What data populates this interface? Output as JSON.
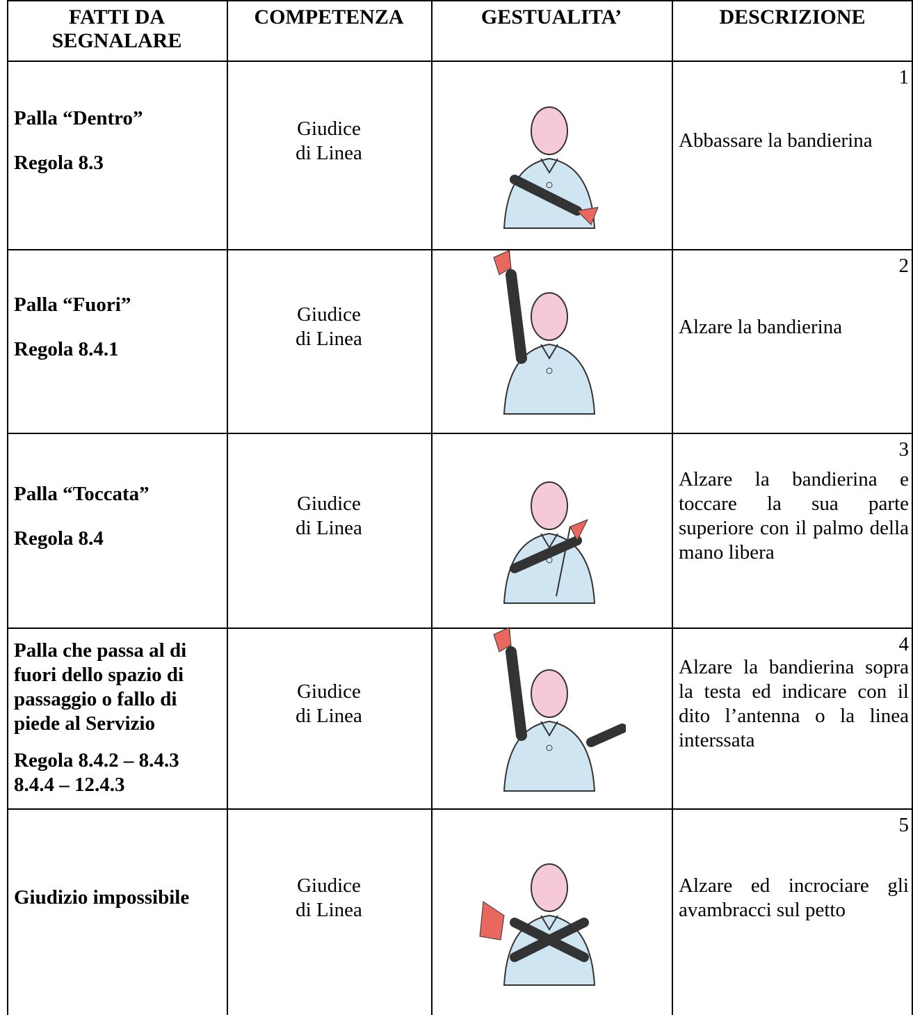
{
  "table": {
    "headers": [
      "FATTI DA\nSEGNALARE",
      "COMPETENZA",
      "GESTUALITA’",
      "DESCRIZIONE"
    ],
    "rows": [
      {
        "number": "1",
        "fact": "Palla “Dentro”",
        "rule": "Regola 8.3",
        "competence": "Giudice\ndi Linea",
        "description": "Abbassare la bandierina"
      },
      {
        "number": "2",
        "fact": "Palla “Fuori”",
        "rule": "Regola 8.4.1",
        "competence": "Giudice\ndi Linea",
        "description": "Alzare la bandierina"
      },
      {
        "number": "3",
        "fact": "Palla “Toccata”",
        "rule": "Regola 8.4",
        "competence": "Giudice\ndi Linea",
        "description": "Alzare la bandierina e toccare la sua parte superiore con il palmo della mano libera"
      },
      {
        "number": "4",
        "fact": "Palla che passa al di fuori dello spazio di passaggio o fallo di piede al Servizio",
        "rule": "Regola 8.4.2 – 8.4.3\n8.4.4 – 12.4.3",
        "competence": "Giudice\ndi Linea",
        "description": "Alzare la bandierina sopra la testa ed indicare con il dito l’antenna o la linea interssata"
      },
      {
        "number": "5",
        "fact": "Giudizio impossibile",
        "competence": "Giudice\ndi Linea",
        "description": "Alzare ed incrociare gli avambracci sul petto"
      }
    ]
  }
}
